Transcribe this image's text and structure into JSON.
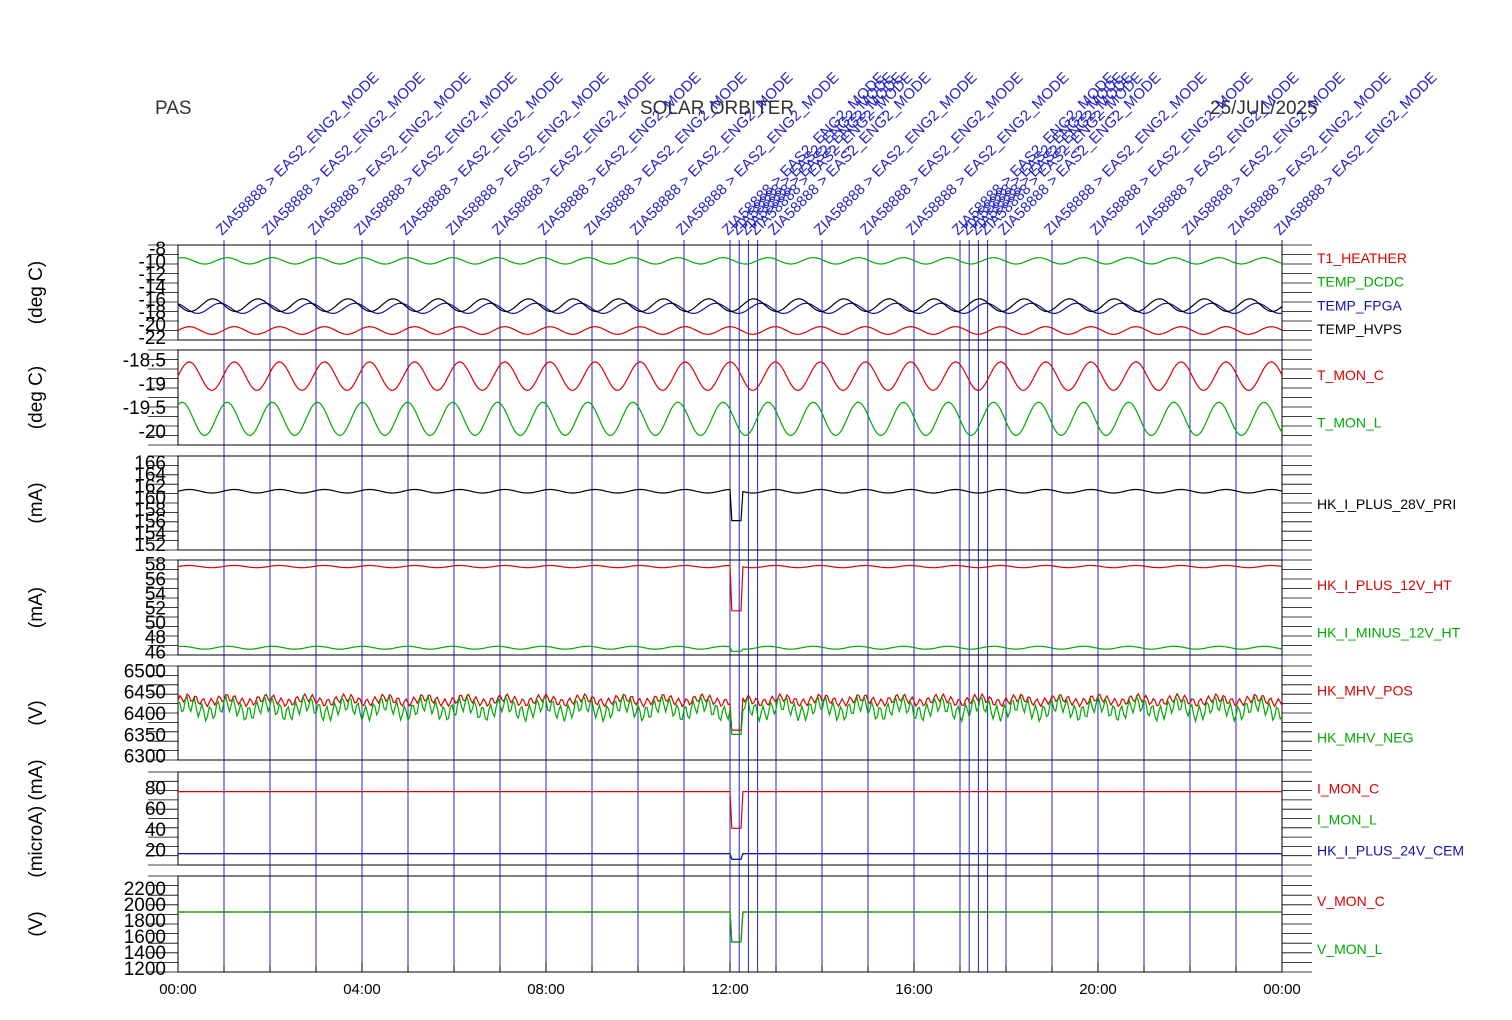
{
  "header": {
    "left": "PAS",
    "center": "SOLAR ORBITER",
    "right": "25/JUL/2025"
  },
  "event_markers": {
    "label": "ZIA58888 > EAS2_ENG2_MODE",
    "hours": [
      1.0,
      2.0,
      3.0,
      4.0,
      5.0,
      6.0,
      7.0,
      8.0,
      9.0,
      10.0,
      11.0,
      12.0,
      12.2,
      12.4,
      12.6,
      13.0,
      14.0,
      15.0,
      16.0,
      17.0,
      17.2,
      17.4,
      17.6,
      18.0,
      19.0,
      20.0,
      21.0,
      22.0,
      23.0,
      24.0
    ]
  },
  "x_ticks": [
    "00:00",
    "04:00",
    "08:00",
    "12:00",
    "16:00",
    "20:00",
    "00:00"
  ],
  "colors": {
    "axis": "#000000",
    "marker": "#2222cc",
    "red": "#dd0000",
    "green": "#00aa00",
    "blue": "#1111aa",
    "black": "#000000"
  },
  "chart_data": [
    {
      "type": "line",
      "ylabel": "(deg C)",
      "ylim": [
        -22.5,
        -7.5
      ],
      "inverted": true,
      "yticks": [
        -8,
        -10,
        -12,
        -14,
        -16,
        -18,
        -20,
        -22
      ],
      "series": [
        {
          "name": "T1_HEATHER",
          "color": "#dd0000",
          "base": -21.0,
          "amp": 0.6
        },
        {
          "name": "TEMP_DCDC",
          "color": "#00aa00",
          "base": -10.0,
          "amp": 0.5
        },
        {
          "name": "TEMP_FPGA",
          "color": "#1111aa",
          "base": -17.5,
          "amp": 0.8
        },
        {
          "name": "TEMP_HVPS",
          "color": "#000000",
          "base": -17.0,
          "amp": 1.0
        }
      ]
    },
    {
      "type": "line",
      "ylabel": "(deg C)",
      "ylim": [
        -20.3,
        -18.3
      ],
      "inverted": false,
      "yticks": [
        -18.5,
        -19.0,
        -19.5,
        -20.0
      ],
      "series": [
        {
          "name": "T_MON_C",
          "color": "#dd0000",
          "base": -18.85,
          "amp": 0.3
        },
        {
          "name": "T_MON_L",
          "color": "#00aa00",
          "base": -19.75,
          "amp": 0.35
        }
      ]
    },
    {
      "type": "line",
      "ylabel": "(mA)",
      "ylim": [
        151,
        167
      ],
      "inverted": false,
      "yticks": [
        166,
        164,
        162,
        160,
        158,
        156,
        154,
        152
      ],
      "series": [
        {
          "name": "HK_I_PLUS_28V_PRI",
          "color": "#000000",
          "base": 161,
          "amp": 0.3
        }
      ]
    },
    {
      "type": "line",
      "ylabel": "(mA)",
      "ylim": [
        45.5,
        58.5
      ],
      "inverted": false,
      "yticks": [
        58,
        56,
        54,
        52,
        50,
        48,
        46
      ],
      "series": [
        {
          "name": "HK_I_PLUS_12V_HT",
          "color": "#dd0000",
          "base": 57.6,
          "amp": 0.15
        },
        {
          "name": "HK_I_MINUS_12V_HT",
          "color": "#00aa00",
          "base": 46.5,
          "amp": 0.2
        }
      ]
    },
    {
      "type": "line",
      "ylabel": "(V)",
      "ylim": [
        6290,
        6510
      ],
      "inverted": false,
      "yticks": [
        6500,
        6450,
        6400,
        6350,
        6300
      ],
      "series": [
        {
          "name": "HK_MHV_POS",
          "color": "#dd0000",
          "base": 6430,
          "amp": 15
        },
        {
          "name": "HK_MHV_NEG",
          "color": "#00aa00",
          "base": 6410,
          "amp": 30
        }
      ]
    },
    {
      "type": "line",
      "ylabel": "(microA) (mA)",
      "ylim": [
        5,
        95
      ],
      "inverted": false,
      "yticks": [
        80,
        60,
        40,
        20
      ],
      "series": [
        {
          "name": "I_MON_C",
          "color": "#dd0000",
          "base": 76,
          "amp": 0
        },
        {
          "name": "I_MON_L",
          "color": "#00aa00",
          "base": 16,
          "amp": 0
        },
        {
          "name": "HK_I_PLUS_24V_CEM",
          "color": "#1111aa",
          "base": 16,
          "amp": 0
        }
      ]
    },
    {
      "type": "line",
      "ylabel": "(V)",
      "ylim": [
        1150,
        2350
      ],
      "inverted": false,
      "yticks": [
        2200,
        2000,
        1800,
        1600,
        1400,
        1200
      ],
      "series": [
        {
          "name": "V_MON_C",
          "color": "#dd0000",
          "base": 1900,
          "amp": 0
        },
        {
          "name": "V_MON_L",
          "color": "#00aa00",
          "base": 1900,
          "amp": 0
        }
      ]
    }
  ]
}
